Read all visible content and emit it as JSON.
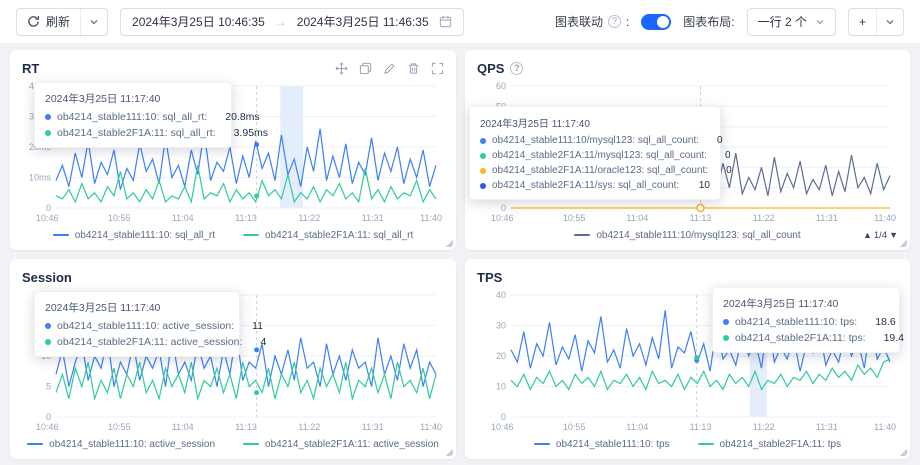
{
  "ui": {
    "help_glyph": "?"
  },
  "toolbar": {
    "refresh_label": "刷新",
    "time_range": {
      "start": "2024年3月25日 10:46:35",
      "separator": "→",
      "end": "2024年3月25日 11:46:35"
    },
    "chart_linkage_label": "图表联动",
    "chart_linkage_on": true,
    "chart_layout_label": "图表布局:",
    "chart_layout_value": "一行 2 个",
    "add_button_label": "+"
  },
  "chart_data": [
    {
      "id": "chart-rt",
      "type": "line",
      "title": "RT",
      "ylim": [
        0,
        40
      ],
      "yticks": [
        {
          "v": 40,
          "label": "40ms"
        },
        {
          "v": 30,
          "label": "30ms"
        },
        {
          "v": 20,
          "label": "20ms"
        },
        {
          "v": 10,
          "label": "10ms"
        },
        {
          "v": 0,
          "label": "0"
        }
      ],
      "xticks": [
        "10:46",
        "10:55",
        "11:04",
        "11:13",
        "11:22",
        "11:31",
        "11:40"
      ],
      "cursor": 0.528,
      "band": [
        0.59,
        0.65
      ],
      "series": [
        {
          "name": "ob4214_stable111:10: sql_all_rt",
          "color": "#3d7ff7",
          "values": [
            9,
            14,
            7,
            18,
            10,
            22,
            8,
            15,
            11,
            19,
            6,
            13,
            9,
            21,
            12,
            16,
            8,
            23,
            10,
            14,
            7,
            19,
            11,
            25,
            9,
            15,
            12,
            20,
            8,
            17,
            10,
            22,
            13,
            18,
            9,
            24,
            11,
            16,
            7,
            20,
            12,
            26,
            9,
            17,
            10,
            21,
            8,
            15,
            11,
            23,
            9,
            18,
            12,
            20,
            8,
            16,
            10,
            19,
            7,
            14
          ]
        },
        {
          "name": "ob4214_stable2F1A:11: sql_all_rt",
          "color": "#30cb9b",
          "values": [
            4,
            3,
            6,
            2,
            8,
            3,
            5,
            2,
            7,
            4,
            12,
            3,
            5,
            2,
            6,
            3,
            9,
            2,
            4,
            3,
            7,
            2,
            14,
            3,
            5,
            4,
            8,
            2,
            6,
            3,
            5,
            2,
            9,
            4,
            6,
            3,
            11,
            2,
            5,
            3,
            7,
            2,
            6,
            4,
            8,
            3,
            5,
            2,
            13,
            3,
            6,
            2,
            7,
            3,
            5,
            4,
            9,
            2,
            6,
            3
          ]
        }
      ],
      "markers": [
        {
          "v": 20.8,
          "color": "#3d7ff7"
        },
        {
          "v": 3.95,
          "color": "#30cb9b"
        }
      ],
      "tooltip": {
        "time": "2024年3月25日 11:17:40",
        "rows": [
          {
            "color": "#3d7ff7",
            "label": "ob4214_stable111:10: sql_all_rt:",
            "value": "20.8ms"
          },
          {
            "color": "#30cb9b",
            "label": "ob4214_stable2F1A:11: sql_all_rt:",
            "value": "3.95ms"
          }
        ]
      },
      "legend": [
        {
          "label": "ob4214_stable111:10: sql_all_rt",
          "color": "#3d7ff7"
        },
        {
          "label": "ob4214_stable2F1A:11: sql_all_rt",
          "color": "#30cb9b"
        }
      ]
    },
    {
      "id": "chart-qps",
      "type": "line",
      "title": "QPS",
      "has_help": true,
      "ylim": [
        0,
        60
      ],
      "yticks": [
        {
          "v": 60,
          "label": "60"
        },
        {
          "v": 50,
          "label": "50"
        },
        {
          "v": 40,
          "label": "40"
        },
        {
          "v": 30,
          "label": "30"
        },
        {
          "v": 20,
          "label": "20"
        },
        {
          "v": 10,
          "label": "10"
        },
        {
          "v": 0,
          "label": "0"
        }
      ],
      "xticks": [
        "10:46",
        "10:55",
        "11:04",
        "11:13",
        "11:22",
        "11:31",
        "11:40"
      ],
      "cursor": 0.5,
      "series": [
        {
          "name": "ob4214_stable2F1A:11/sys: sql_all_count",
          "color": "#5b6d92",
          "values": [
            8,
            15,
            6,
            22,
            9,
            14,
            7,
            25,
            10,
            16,
            6,
            20,
            8,
            28,
            11,
            15,
            7,
            23,
            9,
            17,
            6,
            21,
            10,
            26,
            8,
            14,
            7,
            19,
            9,
            24,
            6,
            16,
            8,
            22,
            10,
            27,
            7,
            15,
            9,
            20,
            6,
            25,
            8,
            17,
            10,
            23,
            7,
            14,
            9,
            21,
            6,
            18,
            8,
            26,
            10,
            15,
            7,
            22,
            9,
            16
          ]
        },
        {
          "name": "ob4214_stable2F1A:11/oracle123: sql_all_count",
          "color": "#f7ba1e",
          "values": [
            0,
            0,
            0,
            0,
            0,
            0,
            0,
            0,
            0,
            0,
            0,
            0,
            0,
            0,
            0,
            0,
            0,
            0,
            0,
            0,
            0,
            0,
            0,
            0,
            0,
            0,
            0,
            0,
            0,
            0,
            0,
            0,
            0,
            0,
            0,
            0,
            0,
            0,
            0,
            0,
            0,
            0,
            0,
            0,
            0,
            0,
            0,
            0,
            0,
            0,
            0,
            0,
            0,
            0,
            0,
            0,
            0,
            0,
            0,
            0
          ]
        }
      ],
      "markers": [
        {
          "v": 0,
          "color": "#f7ba1e",
          "hollow": true
        }
      ],
      "tooltip": {
        "time": "2024年3月25日 11:17:40",
        "rows": [
          {
            "color": "#3d7ff7",
            "label": "ob4214_stable111:10/mysql123: sql_all_count:",
            "value": "0"
          },
          {
            "color": "#30cb9b",
            "label": "ob4214_stable2F1A:11/mysql123: sql_all_count:",
            "value": "0"
          },
          {
            "color": "#f7ba1e",
            "label": "ob4214_stable2F1A:11/oracle123: sql_all_count:",
            "value": "0"
          },
          {
            "color": "#2f54eb",
            "label": "ob4214_stable2F1A:11/sys: sql_all_count:",
            "value": "10"
          }
        ]
      },
      "legend": [
        {
          "label": "ob4214_stable111:10/mysql123: sql_all_count",
          "color": "#5b6d92"
        }
      ],
      "pager": {
        "up": "▲",
        "text": "1/4",
        "down": "▼"
      }
    },
    {
      "id": "chart-session",
      "type": "line",
      "title": "Session",
      "ylim": [
        0,
        20
      ],
      "yticks": [
        {
          "v": 20,
          "label": "20"
        },
        {
          "v": 15,
          "label": "15"
        },
        {
          "v": 10,
          "label": "10"
        },
        {
          "v": 5,
          "label": "5"
        },
        {
          "v": 0,
          "label": "0"
        }
      ],
      "xticks": [
        "10:46",
        "10:55",
        "11:04",
        "11:13",
        "11:22",
        "11:31",
        "11:40"
      ],
      "cursor": 0.528,
      "series": [
        {
          "name": "ob4214_stable111:10: active_session",
          "color": "#3d7ff7",
          "values": [
            7,
            11,
            5,
            9,
            12,
            6,
            10,
            8,
            13,
            5,
            9,
            7,
            12,
            6,
            10,
            8,
            11,
            5,
            13,
            7,
            9,
            6,
            12,
            8,
            10,
            5,
            11,
            7,
            14,
            6,
            9,
            8,
            12,
            5,
            10,
            7,
            11,
            6,
            13,
            8,
            9,
            5,
            12,
            7,
            10,
            6,
            11,
            8,
            9,
            5,
            13,
            7,
            10,
            6,
            12,
            8,
            11,
            5,
            9,
            7
          ]
        },
        {
          "name": "ob4214_stable2F1A:11: active_session",
          "color": "#30cb9b",
          "values": [
            4,
            7,
            3,
            8,
            5,
            9,
            3,
            6,
            4,
            8,
            3,
            7,
            5,
            9,
            4,
            6,
            3,
            8,
            5,
            7,
            4,
            9,
            3,
            6,
            5,
            8,
            4,
            7,
            3,
            9,
            5,
            6,
            4,
            8,
            3,
            7,
            5,
            9,
            4,
            6,
            3,
            8,
            5,
            7,
            4,
            9,
            3,
            6,
            5,
            8,
            4,
            7,
            3,
            9,
            5,
            6,
            4,
            8,
            3,
            7
          ]
        }
      ],
      "markers": [
        {
          "v": 11,
          "color": "#3d7ff7"
        },
        {
          "v": 4,
          "color": "#30cb9b"
        }
      ],
      "tooltip": {
        "time": "2024年3月25日 11:17:40",
        "rows": [
          {
            "color": "#3d7ff7",
            "label": "ob4214_stable111:10: active_session:",
            "value": "11"
          },
          {
            "color": "#30cb9b",
            "label": "ob4214_stable2F1A:11: active_session:",
            "value": "4"
          }
        ]
      },
      "legend": [
        {
          "label": "ob4214_stable111:10: active_session",
          "color": "#3d7ff7"
        },
        {
          "label": "ob4214_stable2F1A:11: active_session",
          "color": "#30cb9b"
        }
      ]
    },
    {
      "id": "chart-tps",
      "type": "line",
      "title": "TPS",
      "ylim": [
        0,
        40
      ],
      "yticks": [
        {
          "v": 40,
          "label": "40"
        },
        {
          "v": 30,
          "label": "30"
        },
        {
          "v": 20,
          "label": "20"
        },
        {
          "v": 10,
          "label": "10"
        },
        {
          "v": 0,
          "label": "0"
        }
      ],
      "xticks": [
        "10:46",
        "10:55",
        "11:04",
        "11:13",
        "11:22",
        "11:31",
        "11:40"
      ],
      "cursor": 0.49,
      "band": [
        0.63,
        0.675
      ],
      "series": [
        {
          "name": "ob4214_stable111:10: tps",
          "color": "#3d7ff7",
          "values": [
            22,
            18,
            28,
            16,
            24,
            20,
            31,
            17,
            23,
            19,
            27,
            15,
            25,
            21,
            33,
            18,
            22,
            16,
            29,
            20,
            24,
            17,
            26,
            19,
            35,
            16,
            23,
            21,
            28,
            18,
            24,
            15,
            30,
            19,
            22,
            17,
            27,
            20,
            25,
            16,
            32,
            18,
            23,
            19,
            26,
            15,
            24,
            21,
            29,
            17,
            22,
            18,
            27,
            20,
            25,
            16,
            31,
            19,
            23,
            18
          ]
        },
        {
          "name": "ob4214_stable2F1A:11: tps",
          "color": "#30cb9b",
          "values": [
            12,
            10,
            14,
            9,
            13,
            11,
            15,
            10,
            12,
            9,
            14,
            11,
            13,
            10,
            15,
            9,
            12,
            11,
            14,
            10,
            13,
            9,
            15,
            11,
            12,
            10,
            14,
            9,
            13,
            11,
            15,
            10,
            12,
            9,
            14,
            11,
            13,
            10,
            15,
            9,
            12,
            11,
            14,
            10,
            13,
            12,
            15,
            11,
            14,
            12,
            16,
            13,
            15,
            12,
            17,
            14,
            16,
            13,
            18,
            19
          ]
        }
      ],
      "markers": [
        {
          "v": 18.6,
          "color": "#3d7ff7"
        },
        {
          "v": 19.4,
          "color": "#30cb9b"
        }
      ],
      "tooltip": {
        "time": "2024年3月25日 11:17:40",
        "rows": [
          {
            "color": "#3d7ff7",
            "label": "ob4214_stable111:10: tps:",
            "value": "18.6"
          },
          {
            "color": "#30cb9b",
            "label": "ob4214_stable2F1A:11: tps:",
            "value": "19.4"
          }
        ]
      },
      "legend": [
        {
          "label": "ob4214_stable111:10: tps",
          "color": "#3d7ff7"
        },
        {
          "label": "ob4214_stable2F1A:11: tps",
          "color": "#30cb9b"
        }
      ]
    }
  ]
}
